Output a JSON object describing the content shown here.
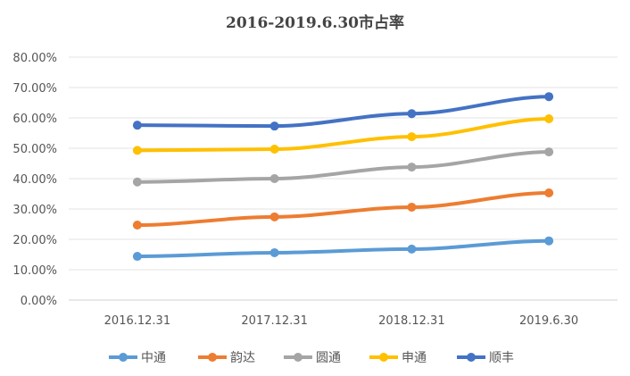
{
  "chart_data": {
    "type": "line",
    "title": "2016-2019.6.30市占率",
    "xlabel": "",
    "ylabel": "",
    "categories": [
      "2016.12.31",
      "2017.12.31",
      "2018.12.31",
      "2019.6.30"
    ],
    "ylim": [
      0,
      80
    ],
    "yticks": [
      "0.00%",
      "10.00%",
      "20.00%",
      "30.00%",
      "40.00%",
      "50.00%",
      "60.00%",
      "70.00%",
      "80.00%"
    ],
    "grid": true,
    "legend_position": "bottom",
    "series": [
      {
        "name": "中通",
        "color": "#5B9BD5",
        "values": [
          14.4,
          15.6,
          16.8,
          19.5
        ]
      },
      {
        "name": "韵达",
        "color": "#ED7D31",
        "values": [
          24.7,
          27.4,
          30.6,
          35.3
        ]
      },
      {
        "name": "圆通",
        "color": "#A5A5A5",
        "values": [
          38.9,
          40.0,
          43.8,
          48.8
        ]
      },
      {
        "name": "申通",
        "color": "#FFC000",
        "values": [
          49.3,
          49.7,
          53.8,
          59.7
        ]
      },
      {
        "name": "顺丰",
        "color": "#4472C4",
        "values": [
          57.6,
          57.3,
          61.4,
          67.0
        ]
      }
    ]
  }
}
